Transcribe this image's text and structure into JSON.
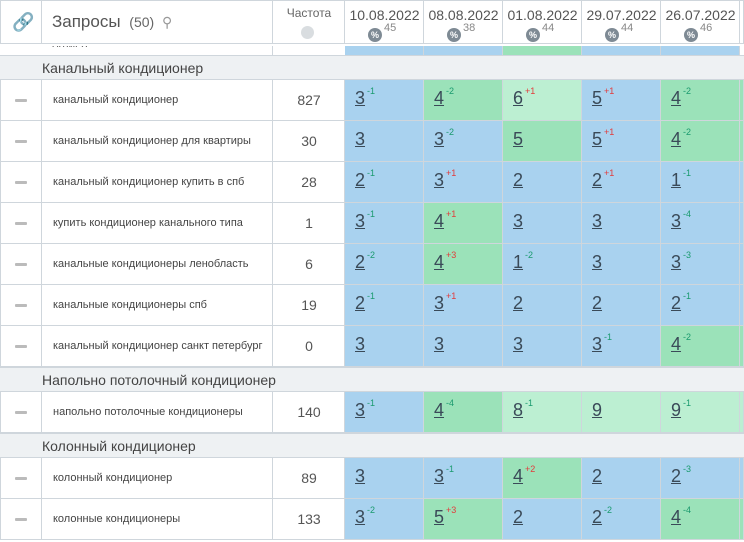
{
  "header": {
    "link_icon": "link-icon",
    "query_title": "Запросы",
    "query_count": "(50)",
    "search_icon": "search-icon",
    "freq_title": "Частота",
    "globe_icon": "globe-icon",
    "dates": [
      {
        "date": "10.08.2022",
        "pct": "45"
      },
      {
        "date": "08.08.2022",
        "pct": "38"
      },
      {
        "date": "01.08.2022",
        "pct": "44"
      },
      {
        "date": "29.07.2022",
        "pct": "44"
      },
      {
        "date": "26.07.2022",
        "pct": "46"
      }
    ]
  },
  "tail_text": "офиса",
  "colors": {
    "blue": "#a9d2ef",
    "green": "#9be2b9",
    "light_green": "#bcefd2",
    "up": "#1a9a6e",
    "down": "#e23b3b"
  },
  "groups": [
    {
      "label": "Канальный кондиционер",
      "rows": [
        {
          "query": "канальный кондиционер",
          "freq": "827",
          "positions": [
            {
              "v": "3",
              "d": "-1",
              "s": "up",
              "c": "blue"
            },
            {
              "v": "4",
              "d": "-2",
              "s": "up",
              "c": "green"
            },
            {
              "v": "6",
              "d": "+1",
              "s": "down",
              "c": "lgreen"
            },
            {
              "v": "5",
              "d": "+1",
              "s": "down",
              "c": "blue"
            },
            {
              "v": "4",
              "d": "-2",
              "s": "up",
              "c": "green"
            }
          ]
        },
        {
          "query": "канальный кондиционер для квартиры",
          "freq": "30",
          "positions": [
            {
              "v": "3",
              "d": "",
              "s": "",
              "c": "blue"
            },
            {
              "v": "3",
              "d": "-2",
              "s": "up",
              "c": "blue"
            },
            {
              "v": "5",
              "d": "",
              "s": "",
              "c": "green"
            },
            {
              "v": "5",
              "d": "+1",
              "s": "down",
              "c": "blue"
            },
            {
              "v": "4",
              "d": "-2",
              "s": "up",
              "c": "green"
            }
          ]
        },
        {
          "query": "канальный кондиционер купить в спб",
          "freq": "28",
          "positions": [
            {
              "v": "2",
              "d": "-1",
              "s": "up",
              "c": "blue"
            },
            {
              "v": "3",
              "d": "+1",
              "s": "down",
              "c": "blue"
            },
            {
              "v": "2",
              "d": "",
              "s": "",
              "c": "blue"
            },
            {
              "v": "2",
              "d": "+1",
              "s": "down",
              "c": "blue"
            },
            {
              "v": "1",
              "d": "-1",
              "s": "up",
              "c": "blue"
            }
          ]
        },
        {
          "query": "купить кондиционер канального типа",
          "freq": "1",
          "positions": [
            {
              "v": "3",
              "d": "-1",
              "s": "up",
              "c": "blue"
            },
            {
              "v": "4",
              "d": "+1",
              "s": "down",
              "c": "green"
            },
            {
              "v": "3",
              "d": "",
              "s": "",
              "c": "blue"
            },
            {
              "v": "3",
              "d": "",
              "s": "",
              "c": "blue"
            },
            {
              "v": "3",
              "d": "-4",
              "s": "up",
              "c": "blue"
            }
          ]
        },
        {
          "query": "канальные кондиционеры ленобласть",
          "freq": "6",
          "positions": [
            {
              "v": "2",
              "d": "-2",
              "s": "up",
              "c": "blue"
            },
            {
              "v": "4",
              "d": "+3",
              "s": "down",
              "c": "green"
            },
            {
              "v": "1",
              "d": "-2",
              "s": "up",
              "c": "blue"
            },
            {
              "v": "3",
              "d": "",
              "s": "",
              "c": "blue"
            },
            {
              "v": "3",
              "d": "-3",
              "s": "up",
              "c": "blue"
            }
          ]
        },
        {
          "query": "канальные кондиционеры спб",
          "freq": "19",
          "positions": [
            {
              "v": "2",
              "d": "-1",
              "s": "up",
              "c": "blue"
            },
            {
              "v": "3",
              "d": "+1",
              "s": "down",
              "c": "blue"
            },
            {
              "v": "2",
              "d": "",
              "s": "",
              "c": "blue"
            },
            {
              "v": "2",
              "d": "",
              "s": "",
              "c": "blue"
            },
            {
              "v": "2",
              "d": "-1",
              "s": "up",
              "c": "blue"
            }
          ]
        },
        {
          "query": "канальный кондиционер санкт петербург",
          "freq": "0",
          "positions": [
            {
              "v": "3",
              "d": "",
              "s": "",
              "c": "blue"
            },
            {
              "v": "3",
              "d": "",
              "s": "",
              "c": "blue"
            },
            {
              "v": "3",
              "d": "",
              "s": "",
              "c": "blue"
            },
            {
              "v": "3",
              "d": "-1",
              "s": "up",
              "c": "blue"
            },
            {
              "v": "4",
              "d": "-2",
              "s": "up",
              "c": "green"
            }
          ]
        }
      ]
    },
    {
      "label": "Напольно потолочный кондиционер",
      "rows": [
        {
          "query": "напольно потолочные кондиционеры",
          "freq": "140",
          "positions": [
            {
              "v": "3",
              "d": "-1",
              "s": "up",
              "c": "blue"
            },
            {
              "v": "4",
              "d": "-4",
              "s": "up",
              "c": "green"
            },
            {
              "v": "8",
              "d": "-1",
              "s": "up",
              "c": "lgreen"
            },
            {
              "v": "9",
              "d": "",
              "s": "",
              "c": "lgreen"
            },
            {
              "v": "9",
              "d": "-1",
              "s": "up",
              "c": "lgreen"
            }
          ]
        }
      ]
    },
    {
      "label": "Колонный кондиционер",
      "rows": [
        {
          "query": "колонный кондиционер",
          "freq": "89",
          "positions": [
            {
              "v": "3",
              "d": "",
              "s": "",
              "c": "blue"
            },
            {
              "v": "3",
              "d": "-1",
              "s": "up",
              "c": "blue"
            },
            {
              "v": "4",
              "d": "+2",
              "s": "down",
              "c": "green"
            },
            {
              "v": "2",
              "d": "",
              "s": "",
              "c": "blue"
            },
            {
              "v": "2",
              "d": "-3",
              "s": "up",
              "c": "blue"
            }
          ]
        },
        {
          "query": "колонные кондиционеры",
          "freq": "133",
          "positions": [
            {
              "v": "3",
              "d": "-2",
              "s": "up",
              "c": "blue"
            },
            {
              "v": "5",
              "d": "+3",
              "s": "down",
              "c": "green"
            },
            {
              "v": "2",
              "d": "",
              "s": "",
              "c": "blue"
            },
            {
              "v": "2",
              "d": "-2",
              "s": "up",
              "c": "blue"
            },
            {
              "v": "4",
              "d": "-4",
              "s": "up",
              "c": "green"
            }
          ]
        }
      ]
    }
  ]
}
